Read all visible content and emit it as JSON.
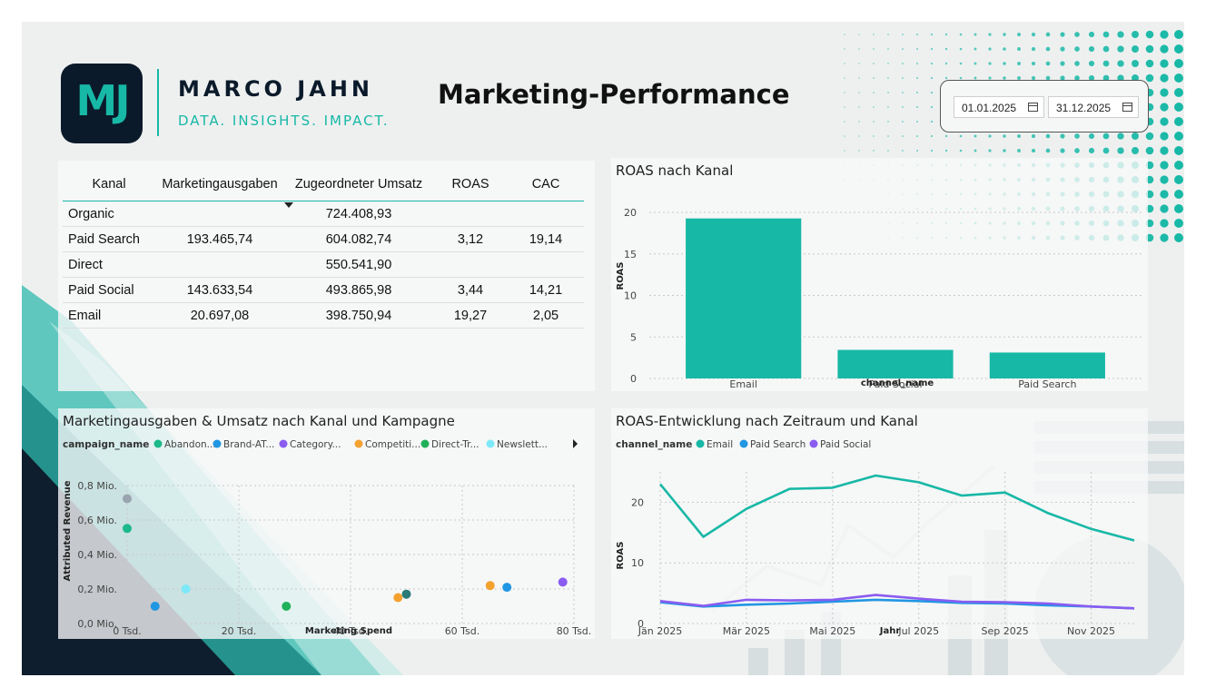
{
  "brand": {
    "logo_text": "MJ",
    "name": "MARCO JAHN",
    "tagline": "DATA. INSIGHTS. IMPACT."
  },
  "page_title": "Marketing-Performance",
  "date_range": {
    "start": "01.01.2025",
    "end": "31.12.2025"
  },
  "colors": {
    "accent": "#17b8a6",
    "dark": "#0b1a2a"
  },
  "kpi_table": {
    "headers": [
      "Kanal",
      "Marketingausgaben",
      "Zugeordneter Umsatz",
      "ROAS",
      "CAC"
    ],
    "rows": [
      [
        "Organic",
        "",
        "724.408,93",
        "",
        ""
      ],
      [
        "Paid Search",
        "193.465,74",
        "604.082,74",
        "3,12",
        "19,14"
      ],
      [
        "Direct",
        "",
        "550.541,90",
        "",
        ""
      ],
      [
        "Paid Social",
        "143.633,54",
        "493.865,98",
        "3,44",
        "14,21"
      ],
      [
        "Email",
        "20.697,08",
        "398.750,94",
        "19,27",
        "2,05"
      ]
    ]
  },
  "chart_data": [
    {
      "type": "bar",
      "title": "ROAS nach Kanal",
      "xlabel": "channel_name",
      "ylabel": "ROAS",
      "categories": [
        "Email",
        "Paid Social",
        "Paid Search"
      ],
      "values": [
        19.27,
        3.44,
        3.12
      ],
      "ylim": [
        0,
        20
      ],
      "yticks": [
        0,
        5,
        10,
        15,
        20
      ],
      "color": "#17b8a6",
      "grid": true
    },
    {
      "type": "scatter",
      "title": "Marketingausgaben & Umsatz nach Kanal und Kampagne",
      "xlabel": "Marketing Spend",
      "ylabel": "Attributed Revenue",
      "legend_title": "campaign_name",
      "legend": [
        {
          "name": "Abandon...",
          "color": "#1db98a"
        },
        {
          "name": "Brand-AT...",
          "color": "#2196e3"
        },
        {
          "name": "Category...",
          "color": "#8a5cf0"
        },
        {
          "name": "Competiti...",
          "color": "#f3a230"
        },
        {
          "name": "Direct-Tr...",
          "color": "#20b05a"
        },
        {
          "name": "Newslett...",
          "color": "#7ee8f8"
        }
      ],
      "xlim": [
        0,
        80
      ],
      "ylim": [
        0,
        0.8
      ],
      "xtick_labels": [
        "0 Tsd.",
        "20 Tsd.",
        "40 Tsd.",
        "60 Tsd.",
        "80 Tsd."
      ],
      "xtick_values": [
        0,
        20,
        40,
        60,
        80
      ],
      "ytick_labels": [
        "0,0 Mio.",
        "0,2 Mio.",
        "0,4 Mio.",
        "0,6 Mio.",
        "0,8 Mio."
      ],
      "ytick_values": [
        0,
        0.2,
        0.4,
        0.6,
        0.8
      ],
      "points": [
        {
          "x": 0,
          "y": 0.724,
          "color": "#9aa4b0"
        },
        {
          "x": 0,
          "y": 0.551,
          "color": "#1db98a"
        },
        {
          "x": 5,
          "y": 0.1,
          "color": "#2196e3"
        },
        {
          "x": 10.5,
          "y": 0.2,
          "color": "#7ee8f8"
        },
        {
          "x": 28.5,
          "y": 0.1,
          "color": "#20b05a"
        },
        {
          "x": 48.5,
          "y": 0.15,
          "color": "#f3a230"
        },
        {
          "x": 50,
          "y": 0.17,
          "color": "#2a7a78"
        },
        {
          "x": 65,
          "y": 0.22,
          "color": "#f3a230"
        },
        {
          "x": 68,
          "y": 0.21,
          "color": "#2196e3"
        },
        {
          "x": 78,
          "y": 0.24,
          "color": "#8a5cf0"
        }
      ],
      "grid": true
    },
    {
      "type": "line",
      "title": "ROAS-Entwicklung nach Zeitraum und Kanal",
      "xlabel": "Jahr",
      "ylabel": "ROAS",
      "legend_title": "channel_name",
      "x": [
        "2025-01",
        "2025-02",
        "2025-03",
        "2025-04",
        "2025-05",
        "2025-06",
        "2025-07",
        "2025-08",
        "2025-09",
        "2025-10",
        "2025-11",
        "2025-12"
      ],
      "xtick_labels": [
        "Jän 2025",
        "Mär 2025",
        "Mai 2025",
        "Jul 2025",
        "Sep 2025",
        "Nov 2025"
      ],
      "ylim": [
        0,
        25
      ],
      "yticks": [
        0,
        10,
        20
      ],
      "series": [
        {
          "name": "Email",
          "color": "#17b8a6",
          "values": [
            23,
            14.3,
            18.9,
            22.2,
            22.4,
            24.4,
            23.3,
            21.1,
            21.6,
            18.2,
            15.6,
            13.7
          ]
        },
        {
          "name": "Paid Search",
          "color": "#2196e3",
          "values": [
            3.5,
            2.8,
            3.1,
            3.3,
            3.6,
            3.9,
            3.7,
            3.4,
            3.3,
            3.0,
            2.8,
            2.5
          ]
        },
        {
          "name": "Paid Social",
          "color": "#8a5cf0",
          "values": [
            3.7,
            2.9,
            3.9,
            3.8,
            3.9,
            4.7,
            4.1,
            3.6,
            3.5,
            3.3,
            2.8,
            2.5
          ]
        }
      ],
      "grid": true
    }
  ]
}
